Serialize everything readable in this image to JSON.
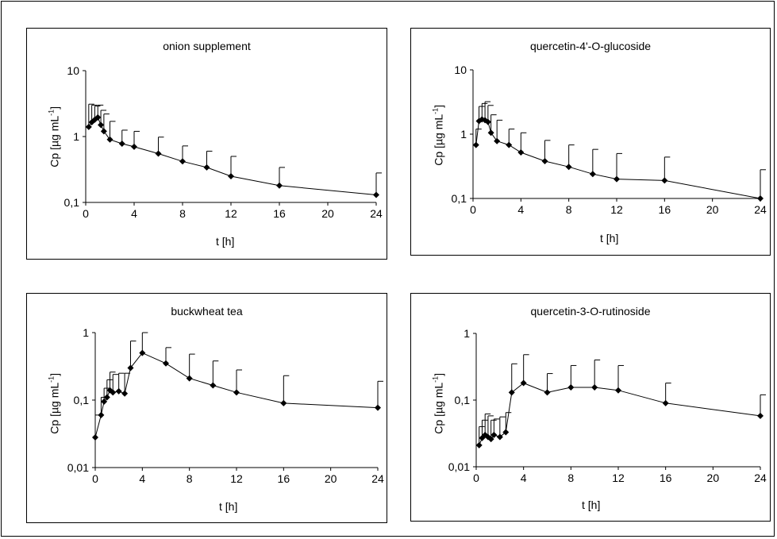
{
  "figure": {
    "y_label_prefix": "Cp [µg mL",
    "y_label_exp": "-1",
    "y_label_suffix": "]"
  },
  "chart_data": [
    {
      "type": "line",
      "title": "onion supplement",
      "xlabel": "t [h]",
      "ylabel": "Cp [µg mL-1]",
      "yscale": "log",
      "xlim": [
        0,
        24
      ],
      "ylim": [
        0.1,
        10
      ],
      "x_ticks": [
        "0",
        "4",
        "8",
        "12",
        "16",
        "20",
        "24"
      ],
      "y_ticks": [
        "0,1",
        "1",
        "10"
      ],
      "grid": false,
      "legend": "none",
      "marker": "diamond",
      "x": [
        0.25,
        0.5,
        0.75,
        1,
        1.25,
        1.5,
        2,
        3,
        4,
        6,
        8,
        10,
        12,
        16,
        24
      ],
      "y": [
        1.4,
        1.65,
        1.8,
        1.95,
        1.5,
        1.2,
        0.9,
        0.78,
        0.7,
        0.55,
        0.42,
        0.34,
        0.25,
        0.18,
        0.13
      ],
      "error_upper": [
        3.1,
        3.0,
        2.9,
        3.0,
        2.5,
        2.2,
        1.7,
        1.25,
        1.2,
        0.98,
        0.72,
        0.6,
        0.5,
        0.34,
        0.28
      ]
    },
    {
      "type": "line",
      "title": "quercetin-4'-O-glucoside",
      "xlabel": "t [h]",
      "ylabel": "Cp [µg mL-1]",
      "yscale": "log",
      "xlim": [
        0,
        24
      ],
      "ylim": [
        0.1,
        10
      ],
      "x_ticks": [
        "0",
        "4",
        "8",
        "12",
        "16",
        "20",
        "24"
      ],
      "y_ticks": [
        "0,1",
        "1",
        "10"
      ],
      "grid": false,
      "legend": "none",
      "marker": "diamond",
      "x": [
        0.25,
        0.5,
        0.75,
        1,
        1.25,
        1.5,
        2,
        3,
        4,
        6,
        8,
        10,
        12,
        16,
        24
      ],
      "y": [
        0.68,
        1.6,
        1.7,
        1.65,
        1.55,
        1.05,
        0.78,
        0.68,
        0.52,
        0.38,
        0.31,
        0.24,
        0.2,
        0.19,
        0.1
      ],
      "error_upper": [
        1.2,
        2.7,
        3.0,
        3.2,
        2.8,
        2.0,
        1.65,
        1.2,
        1.05,
        0.8,
        0.68,
        0.58,
        0.5,
        0.44,
        0.28
      ]
    },
    {
      "type": "line",
      "title": "buckwheat tea",
      "xlabel": "t [h]",
      "ylabel": "Cp [µg mL-1]",
      "yscale": "log",
      "xlim": [
        0,
        24
      ],
      "ylim": [
        0.01,
        1
      ],
      "x_ticks": [
        "0",
        "4",
        "8",
        "12",
        "16",
        "20",
        "24"
      ],
      "y_ticks": [
        "0,01",
        "0,1",
        "1"
      ],
      "grid": false,
      "legend": "none",
      "marker": "diamond",
      "x": [
        0,
        0.5,
        0.75,
        1,
        1.25,
        1.5,
        2,
        2.5,
        3,
        4,
        6,
        8,
        10,
        12,
        16,
        24
      ],
      "y": [
        0.028,
        0.06,
        0.095,
        0.11,
        0.14,
        0.13,
        0.135,
        0.125,
        0.3,
        0.5,
        0.35,
        0.21,
        0.165,
        0.13,
        0.09,
        0.077
      ],
      "error_upper": [
        0.06,
        0.11,
        0.15,
        0.2,
        0.26,
        0.24,
        0.25,
        0.25,
        0.75,
        1.0,
        0.6,
        0.48,
        0.38,
        0.28,
        0.23,
        0.19
      ]
    },
    {
      "type": "line",
      "title": "quercetin-3-O-rutinoside",
      "xlabel": "t [h]",
      "ylabel": "Cp [µg mL-1]",
      "yscale": "log",
      "xlim": [
        0,
        24
      ],
      "ylim": [
        0.01,
        1
      ],
      "x_ticks": [
        "0",
        "4",
        "8",
        "12",
        "16",
        "20",
        "24"
      ],
      "y_ticks": [
        "0,01",
        "0,1",
        "1"
      ],
      "grid": false,
      "legend": "none",
      "marker": "diamond",
      "x": [
        0.25,
        0.5,
        0.75,
        1,
        1.25,
        1.5,
        2,
        2.5,
        3,
        4,
        6,
        8,
        10,
        12,
        16,
        24
      ],
      "y": [
        0.021,
        0.027,
        0.03,
        0.028,
        0.026,
        0.03,
        0.028,
        0.033,
        0.13,
        0.18,
        0.13,
        0.155,
        0.155,
        0.14,
        0.09,
        0.058
      ],
      "error_upper": [
        0.04,
        0.05,
        0.062,
        0.058,
        0.05,
        0.052,
        0.056,
        0.065,
        0.35,
        0.48,
        0.25,
        0.33,
        0.4,
        0.33,
        0.18,
        0.12
      ]
    }
  ]
}
